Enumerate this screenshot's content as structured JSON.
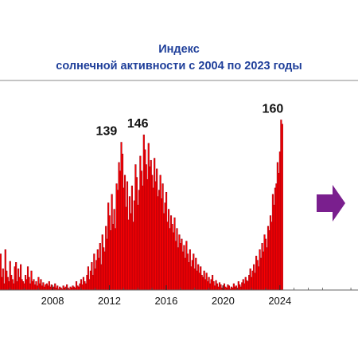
{
  "chart_data": {
    "type": "bar",
    "title_lines": [
      "Индекс",
      "солнечной активности с 2004 по 2023 годы"
    ],
    "xlabel": "",
    "ylabel": "",
    "xlim": [
      2004.3,
      2029.5
    ],
    "ylim": [
      0,
      175
    ],
    "x_ticks": [
      "2008",
      "2012",
      "2016",
      "2020",
      "2024"
    ],
    "grid": false,
    "bar_color": "#ff0000",
    "bar_edge_color": "#9b0010",
    "arrow_color": "#7a1f8e",
    "annotations": [
      {
        "text": "139",
        "x": 2011.8,
        "y": 139
      },
      {
        "text": "146",
        "x": 2014.0,
        "y": 146
      },
      {
        "text": "160",
        "x": 2023.5,
        "y": 160
      }
    ],
    "start_year": 2004.3,
    "step_years": 0.0833,
    "values": [
      34,
      12,
      20,
      6,
      38,
      18,
      12,
      8,
      27,
      14,
      10,
      6,
      22,
      26,
      8,
      20,
      12,
      24,
      10,
      8,
      6,
      14,
      10,
      22,
      12,
      6,
      18,
      8,
      10,
      5,
      8,
      4,
      12,
      6,
      10,
      4,
      7,
      3,
      5,
      6,
      4,
      8,
      3,
      5,
      2,
      3,
      6,
      2,
      4,
      1,
      3,
      2,
      1,
      4,
      2,
      3,
      5,
      2,
      1,
      3,
      2,
      4,
      3,
      2,
      8,
      4,
      3,
      6,
      10,
      5,
      12,
      8,
      6,
      14,
      22,
      10,
      18,
      26,
      14,
      34,
      20,
      28,
      38,
      30,
      44,
      24,
      52,
      40,
      36,
      60,
      48,
      82,
      70,
      56,
      90,
      62,
      76,
      58,
      100,
      94,
      120,
      112,
      139,
      128,
      96,
      108,
      78,
      102,
      66,
      88,
      72,
      98,
      64,
      84,
      118,
      106,
      80,
      94,
      126,
      112,
      98,
      146,
      132,
      118,
      104,
      138,
      116,
      122,
      108,
      96,
      124,
      102,
      114,
      88,
      94,
      108,
      86,
      100,
      72,
      82,
      92,
      64,
      76,
      58,
      70,
      62,
      54,
      68,
      46,
      58,
      40,
      52,
      44,
      48,
      36,
      42,
      30,
      46,
      34,
      26,
      38,
      22,
      28,
      34,
      20,
      30,
      18,
      24,
      16,
      22,
      14,
      12,
      18,
      10,
      16,
      8,
      12,
      6,
      10,
      14,
      8,
      4,
      9,
      6,
      3,
      7,
      5,
      2,
      4,
      6,
      3,
      2,
      5,
      4,
      1,
      3,
      2,
      6,
      3,
      4,
      2,
      8,
      5,
      3,
      7,
      10,
      6,
      12,
      9,
      8,
      14,
      20,
      12,
      18,
      24,
      16,
      32,
      28,
      22,
      38,
      30,
      44,
      36,
      52,
      48,
      40,
      60,
      56,
      70,
      64,
      90,
      80,
      96,
      100,
      120,
      110,
      130,
      160,
      156
    ]
  }
}
